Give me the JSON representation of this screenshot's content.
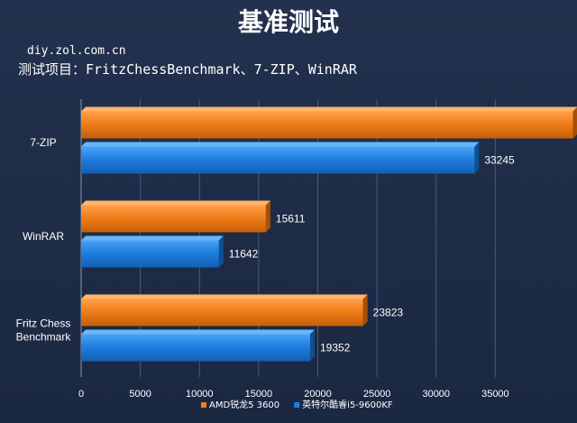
{
  "chart_data": {
    "type": "bar",
    "orientation": "horizontal",
    "title": "基准测试",
    "source": "diy.zol.com.cn",
    "subtitle": "测试项目：FritzChessBenchmark、7-ZIP、WinRAR",
    "categories": [
      "7-ZIP",
      "WinRAR",
      "Fritz Chess Benchmark"
    ],
    "category_lines": [
      [
        "7-ZIP"
      ],
      [
        "WinRAR"
      ],
      [
        "Fritz Chess",
        "Benchmark"
      ]
    ],
    "series": [
      {
        "name": "AMD锐龙5 3600",
        "color": "#f07e1a",
        "values": [
          41561,
          15611,
          23823
        ]
      },
      {
        "name": "英特尔酷睿i5-9600KF",
        "color": "#1f7fe0",
        "values": [
          33245,
          11642,
          19352
        ]
      }
    ],
    "xlim": [
      0,
      40000
    ],
    "x_ticks": [
      0,
      5000,
      10000,
      15000,
      20000,
      25000,
      30000,
      35000
    ],
    "grid": "vertical",
    "legend": "bottom-right"
  }
}
